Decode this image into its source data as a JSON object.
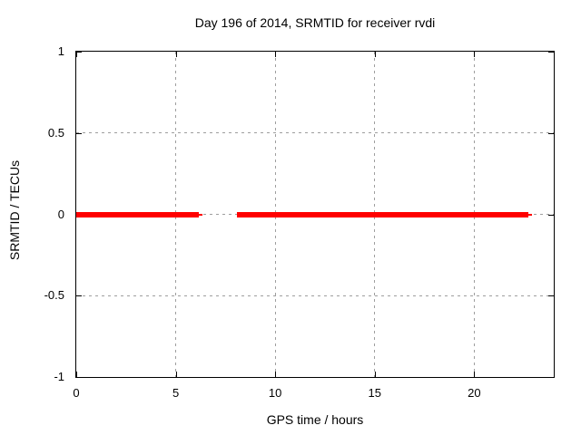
{
  "chart_data": {
    "type": "line",
    "title": "Day 196 of 2014, SRMTID for receiver rvdi",
    "xlabel": "GPS time / hours",
    "ylabel": "SRMTID / TECUs",
    "xlim": [
      0,
      24
    ],
    "ylim": [
      -1,
      1
    ],
    "x_ticks": [
      0,
      5,
      10,
      15,
      20
    ],
    "x_tick_labels": [
      "0",
      "5",
      "10",
      "15",
      "20"
    ],
    "y_ticks": [
      1,
      0.5,
      0,
      -0.5,
      -1
    ],
    "y_tick_labels": [
      "1",
      "0.5",
      "0",
      "-0.5",
      "-1"
    ],
    "grid_y_values": [
      0.5,
      0,
      -0.5
    ],
    "grid_x_values": [
      5,
      10,
      15,
      20
    ],
    "grid": true,
    "legend_position": "none",
    "series": [
      {
        "name": "SRMTID",
        "color": "#ff0000",
        "y_value": 0,
        "segments": [
          {
            "x_start": 0,
            "x_end": 6.18,
            "style": "thick"
          },
          {
            "x_start": 6.18,
            "x_end": 6.36,
            "style": "thin"
          },
          {
            "x_start": 8.09,
            "x_end": 22.73,
            "style": "thick"
          },
          {
            "x_start": 22.73,
            "x_end": 22.91,
            "style": "thin"
          }
        ]
      }
    ],
    "colors": {
      "line": "#ff0000",
      "grid": "#9e9e9e",
      "axis": "#000000",
      "background": "#ffffff"
    }
  }
}
